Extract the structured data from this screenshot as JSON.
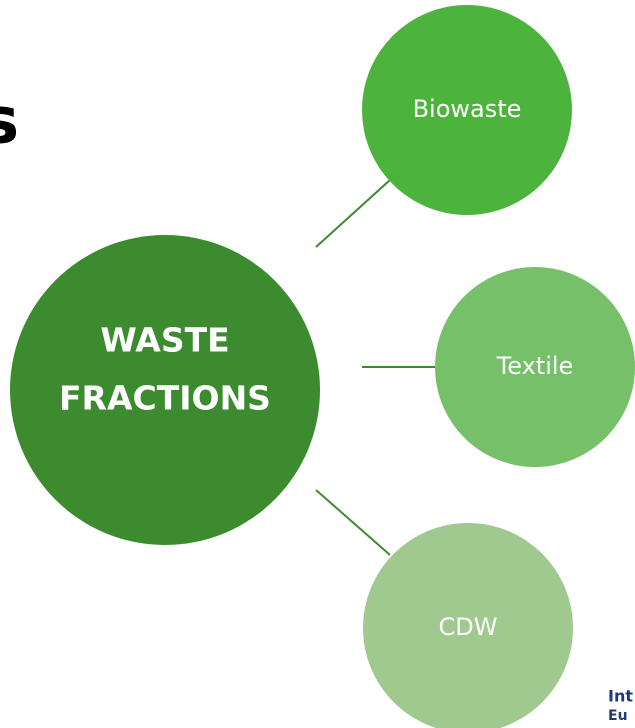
{
  "center": {
    "label_lines": [
      "WASTE",
      "FRACTIONS"
    ]
  },
  "nodes": [
    {
      "label": "Biowaste"
    },
    {
      "label": "Textile"
    },
    {
      "label": "CDW"
    }
  ],
  "fragments": {
    "left_title": "s",
    "logo_lines": [
      "Int",
      "Eu"
    ]
  }
}
